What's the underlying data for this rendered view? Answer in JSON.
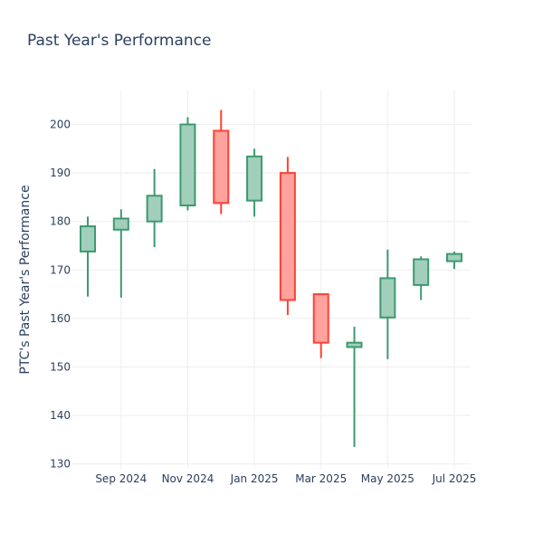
{
  "chart_data": {
    "type": "candlestick",
    "title": "Past Year's Performance",
    "xlabel": "",
    "ylabel": "PTC's Past Year's Performance",
    "ylim": [
      129,
      207
    ],
    "yticks": [
      130,
      140,
      150,
      160,
      170,
      180,
      190,
      200
    ],
    "xticks": [
      "Sep 2024",
      "Nov 2024",
      "Jan 2025",
      "Mar 2025",
      "May 2025",
      "Jul 2025"
    ],
    "grid": true,
    "legend": "none",
    "colors": {
      "increasing_line": "#3d9970",
      "increasing_fill": "#a2cfbb",
      "decreasing_line": "#ff4136",
      "decreasing_fill": "#ffa29d"
    },
    "series": [
      {
        "period": "Aug 2024",
        "open": 173.8,
        "high": 181.0,
        "low": 164.5,
        "close": 179.0
      },
      {
        "period": "Sep 2024",
        "open": 178.3,
        "high": 182.5,
        "low": 164.3,
        "close": 180.6
      },
      {
        "period": "Oct 2024",
        "open": 180.0,
        "high": 190.8,
        "low": 174.7,
        "close": 185.3
      },
      {
        "period": "Nov 2024",
        "open": 183.3,
        "high": 201.5,
        "low": 182.3,
        "close": 200.0
      },
      {
        "period": "Dec 2024",
        "open": 198.7,
        "high": 203.0,
        "low": 181.5,
        "close": 183.8
      },
      {
        "period": "Jan 2025",
        "open": 184.3,
        "high": 195.0,
        "low": 181.0,
        "close": 193.4
      },
      {
        "period": "Feb 2025",
        "open": 190.0,
        "high": 193.3,
        "low": 160.7,
        "close": 163.8
      },
      {
        "period": "Mar 2025",
        "open": 165.0,
        "high": 165.0,
        "low": 151.8,
        "close": 155.0
      },
      {
        "period": "Apr 2025",
        "open": 154.1,
        "high": 158.3,
        "low": 133.5,
        "close": 155.0
      },
      {
        "period": "May 2025",
        "open": 160.2,
        "high": 174.2,
        "low": 151.6,
        "close": 168.3
      },
      {
        "period": "Jun 2025",
        "open": 166.9,
        "high": 172.8,
        "low": 163.8,
        "close": 172.2
      },
      {
        "period": "Jul 2025",
        "open": 171.8,
        "high": 173.8,
        "low": 170.2,
        "close": 173.3
      }
    ]
  }
}
